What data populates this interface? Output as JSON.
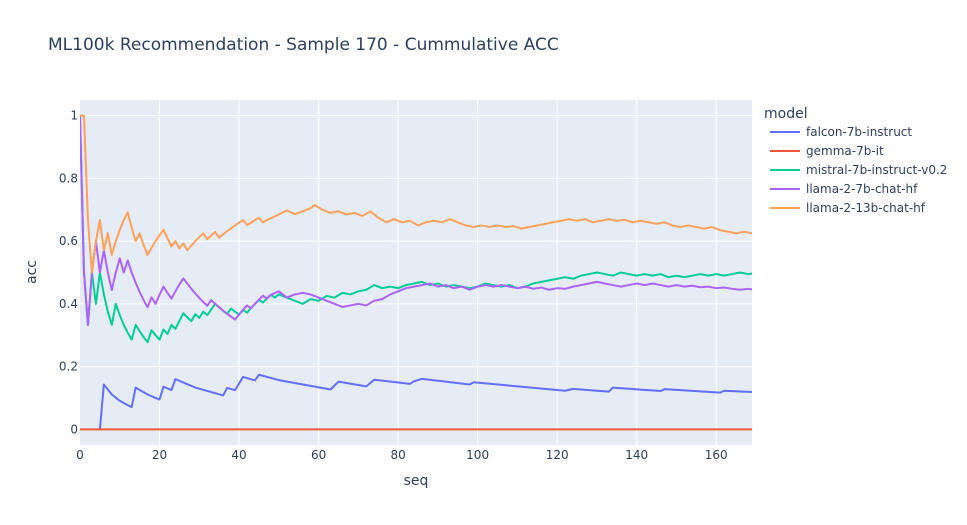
{
  "chart_data": {
    "type": "line",
    "title": "ML100k Recommendation - Sample 170 - Cummulative ACC",
    "xlabel": "seq",
    "ylabel": "acc",
    "xlim": [
      0,
      169
    ],
    "ylim": [
      -0.05,
      1.05
    ],
    "xticks": [
      0,
      20,
      40,
      60,
      80,
      100,
      120,
      140,
      160
    ],
    "yticks": [
      0,
      0.2,
      0.4,
      0.6,
      0.8,
      1
    ],
    "ytick_labels": [
      "0",
      "0.2",
      "0.4",
      "0.6",
      "0.8",
      "1"
    ],
    "grid": true,
    "legend": {
      "title": "model",
      "position": "right"
    },
    "series": [
      {
        "name": "falcon-7b-instruct",
        "color": "#636efa",
        "x": [
          5,
          6,
          8,
          10,
          12,
          13,
          14,
          17,
          20,
          21,
          23,
          24,
          29,
          36,
          37,
          39,
          41,
          44,
          45,
          50,
          63,
          65,
          72,
          74,
          83,
          84,
          86,
          98,
          99,
          122,
          124,
          133,
          134,
          146,
          147,
          161,
          162,
          169
        ],
        "y": [
          0.0,
          0.143,
          0.111,
          0.091,
          0.077,
          0.071,
          0.133,
          0.111,
          0.095,
          0.136,
          0.125,
          0.16,
          0.133,
          0.108,
          0.132,
          0.125,
          0.167,
          0.156,
          0.174,
          0.157,
          0.127,
          0.152,
          0.137,
          0.158,
          0.145,
          0.153,
          0.161,
          0.143,
          0.15,
          0.123,
          0.129,
          0.12,
          0.133,
          0.122,
          0.128,
          0.117,
          0.123,
          0.119
        ]
      },
      {
        "name": "gemma-7b-it",
        "color": "#ef553b",
        "x": [
          0,
          169
        ],
        "y": [
          0,
          0
        ]
      },
      {
        "name": "mistral-7b-instruct-v0.2",
        "color": "#00cc96",
        "x": [
          0,
          1,
          2,
          3,
          4,
          5,
          6,
          7,
          8,
          9,
          10,
          11,
          12,
          13,
          14,
          15,
          16,
          17,
          18,
          19,
          20,
          21,
          22,
          23,
          24,
          25,
          26,
          27,
          28,
          29,
          30,
          31,
          32,
          33,
          34,
          35,
          36,
          37,
          38,
          39,
          40,
          41,
          42,
          43,
          44,
          45,
          46,
          47,
          48,
          49,
          50,
          52,
          54,
          56,
          58,
          60,
          62,
          64,
          66,
          68,
          70,
          72,
          74,
          76,
          78,
          80,
          82,
          84,
          86,
          88,
          90,
          92,
          94,
          96,
          98,
          100,
          102,
          104,
          106,
          108,
          110,
          112,
          114,
          116,
          118,
          120,
          122,
          124,
          126,
          128,
          130,
          132,
          134,
          136,
          138,
          140,
          142,
          144,
          146,
          148,
          150,
          152,
          154,
          156,
          158,
          160,
          162,
          164,
          166,
          168,
          169
        ],
        "y": [
          1.0,
          0.5,
          0.333,
          0.5,
          0.4,
          0.5,
          0.43,
          0.375,
          0.333,
          0.4,
          0.364,
          0.333,
          0.308,
          0.286,
          0.333,
          0.313,
          0.294,
          0.278,
          0.316,
          0.3,
          0.286,
          0.318,
          0.304,
          0.333,
          0.32,
          0.346,
          0.37,
          0.357,
          0.345,
          0.367,
          0.355,
          0.375,
          0.364,
          0.382,
          0.4,
          0.389,
          0.378,
          0.368,
          0.385,
          0.375,
          0.366,
          0.381,
          0.372,
          0.386,
          0.4,
          0.413,
          0.404,
          0.417,
          0.429,
          0.42,
          0.43,
          0.42,
          0.41,
          0.4,
          0.415,
          0.41,
          0.425,
          0.42,
          0.435,
          0.43,
          0.44,
          0.445,
          0.46,
          0.45,
          0.455,
          0.45,
          0.46,
          0.465,
          0.47,
          0.46,
          0.465,
          0.455,
          0.46,
          0.455,
          0.45,
          0.455,
          0.465,
          0.46,
          0.455,
          0.46,
          0.45,
          0.455,
          0.465,
          0.47,
          0.475,
          0.48,
          0.485,
          0.48,
          0.49,
          0.495,
          0.5,
          0.495,
          0.49,
          0.5,
          0.495,
          0.49,
          0.495,
          0.49,
          0.495,
          0.485,
          0.49,
          0.485,
          0.49,
          0.495,
          0.49,
          0.495,
          0.49,
          0.495,
          0.5,
          0.495,
          0.497
        ]
      },
      {
        "name": "llama-2-7b-chat-hf",
        "color": "#ab63fa",
        "x": [
          0,
          1,
          2,
          3,
          4,
          5,
          6,
          7,
          8,
          9,
          10,
          11,
          12,
          13,
          14,
          15,
          16,
          17,
          18,
          19,
          20,
          21,
          22,
          23,
          24,
          25,
          26,
          27,
          28,
          29,
          30,
          31,
          32,
          33,
          34,
          35,
          36,
          37,
          38,
          39,
          40,
          41,
          42,
          43,
          44,
          45,
          46,
          47,
          48,
          50,
          52,
          54,
          56,
          58,
          60,
          62,
          64,
          66,
          68,
          70,
          72,
          74,
          76,
          78,
          80,
          82,
          84,
          86,
          88,
          90,
          92,
          94,
          96,
          98,
          100,
          102,
          104,
          106,
          108,
          110,
          112,
          114,
          116,
          118,
          120,
          122,
          124,
          126,
          128,
          130,
          132,
          134,
          136,
          138,
          140,
          142,
          144,
          146,
          148,
          150,
          152,
          154,
          156,
          158,
          160,
          162,
          164,
          166,
          168,
          169
        ],
        "y": [
          1.0,
          0.5,
          0.333,
          0.5,
          0.6,
          0.5,
          0.571,
          0.5,
          0.444,
          0.5,
          0.545,
          0.5,
          0.538,
          0.5,
          0.467,
          0.438,
          0.412,
          0.389,
          0.421,
          0.4,
          0.429,
          0.455,
          0.435,
          0.417,
          0.44,
          0.462,
          0.481,
          0.464,
          0.448,
          0.433,
          0.419,
          0.406,
          0.394,
          0.412,
          0.4,
          0.389,
          0.378,
          0.368,
          0.359,
          0.35,
          0.366,
          0.381,
          0.395,
          0.386,
          0.4,
          0.413,
          0.426,
          0.417,
          0.429,
          0.44,
          0.42,
          0.43,
          0.435,
          0.43,
          0.42,
          0.41,
          0.4,
          0.39,
          0.395,
          0.4,
          0.395,
          0.41,
          0.415,
          0.43,
          0.44,
          0.45,
          0.455,
          0.46,
          0.465,
          0.455,
          0.46,
          0.45,
          0.455,
          0.445,
          0.455,
          0.46,
          0.455,
          0.46,
          0.455,
          0.45,
          0.455,
          0.448,
          0.452,
          0.445,
          0.45,
          0.448,
          0.455,
          0.46,
          0.465,
          0.47,
          0.465,
          0.46,
          0.455,
          0.46,
          0.465,
          0.46,
          0.465,
          0.46,
          0.455,
          0.46,
          0.455,
          0.458,
          0.453,
          0.455,
          0.45,
          0.452,
          0.448,
          0.445,
          0.448,
          0.446
        ]
      },
      {
        "name": "llama-2-13b-chat-hf",
        "color": "#ffa15a",
        "x": [
          0,
          1,
          2,
          3,
          4,
          5,
          6,
          7,
          8,
          9,
          10,
          11,
          12,
          13,
          14,
          15,
          16,
          17,
          18,
          19,
          20,
          21,
          22,
          23,
          24,
          25,
          26,
          27,
          28,
          29,
          30,
          31,
          32,
          33,
          34,
          35,
          36,
          37,
          38,
          39,
          40,
          41,
          42,
          43,
          44,
          45,
          46,
          47,
          48,
          50,
          52,
          54,
          56,
          58,
          59,
          61,
          63,
          65,
          67,
          69,
          71,
          73,
          75,
          77,
          79,
          81,
          83,
          85,
          87,
          89,
          91,
          93,
          95,
          97,
          99,
          101,
          103,
          105,
          107,
          109,
          111,
          113,
          115,
          117,
          119,
          121,
          123,
          125,
          127,
          129,
          131,
          133,
          135,
          137,
          139,
          141,
          143,
          145,
          147,
          149,
          151,
          153,
          155,
          157,
          159,
          161,
          163,
          165,
          167,
          169
        ],
        "y": [
          1.0,
          1.0,
          0.667,
          0.5,
          0.6,
          0.667,
          0.571,
          0.625,
          0.556,
          0.6,
          0.636,
          0.667,
          0.692,
          0.643,
          0.6,
          0.625,
          0.588,
          0.556,
          0.579,
          0.6,
          0.619,
          0.636,
          0.609,
          0.583,
          0.6,
          0.577,
          0.593,
          0.571,
          0.586,
          0.6,
          0.613,
          0.625,
          0.606,
          0.618,
          0.629,
          0.611,
          0.622,
          0.632,
          0.641,
          0.65,
          0.659,
          0.667,
          0.651,
          0.659,
          0.667,
          0.674,
          0.66,
          0.667,
          0.673,
          0.685,
          0.698,
          0.686,
          0.695,
          0.705,
          0.715,
          0.7,
          0.69,
          0.695,
          0.685,
          0.69,
          0.68,
          0.695,
          0.675,
          0.66,
          0.67,
          0.66,
          0.665,
          0.65,
          0.66,
          0.665,
          0.66,
          0.67,
          0.66,
          0.65,
          0.645,
          0.65,
          0.645,
          0.65,
          0.645,
          0.648,
          0.64,
          0.645,
          0.65,
          0.655,
          0.66,
          0.665,
          0.67,
          0.665,
          0.67,
          0.66,
          0.665,
          0.67,
          0.665,
          0.668,
          0.66,
          0.665,
          0.66,
          0.655,
          0.66,
          0.65,
          0.645,
          0.65,
          0.645,
          0.64,
          0.645,
          0.635,
          0.63,
          0.625,
          0.63,
          0.625
        ]
      }
    ]
  }
}
